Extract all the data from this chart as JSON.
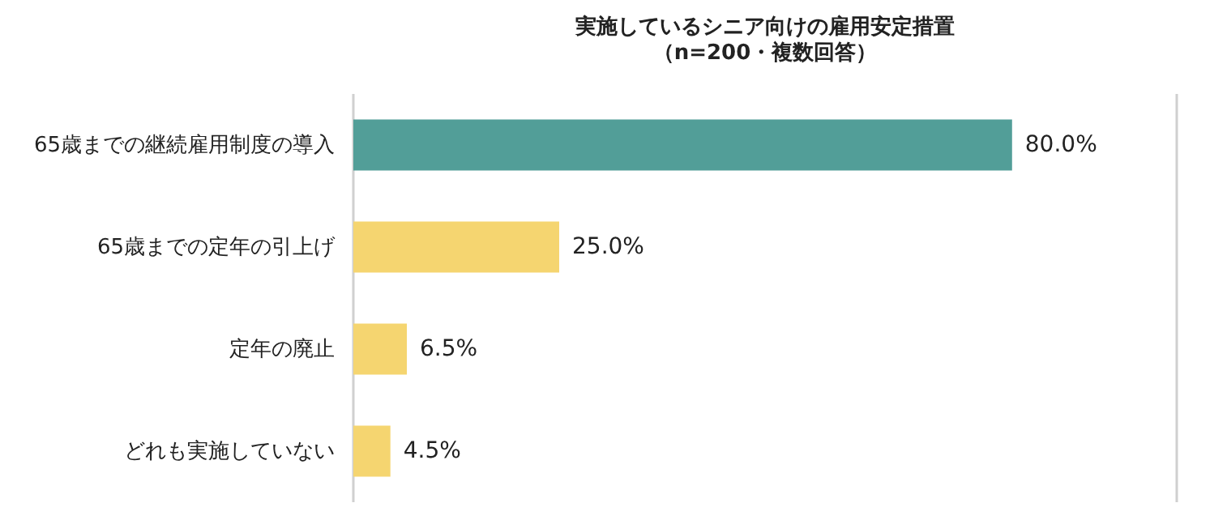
{
  "chart_data": {
    "type": "bar",
    "orientation": "horizontal",
    "title": "実施しているシニア向けの雇用安定措置",
    "subtitle": "（n=200・複数回答）",
    "categories": [
      "65歳までの継続雇用制度の導入",
      "65歳までの定年の引上げ",
      "定年の廃止",
      "どれも実施していない"
    ],
    "values": [
      80.0,
      25.0,
      6.5,
      4.5
    ],
    "colors": [
      "#529e98",
      "#f5d570",
      "#f5d570",
      "#f5d570"
    ],
    "value_labels": [
      "80.0%",
      "25.0%",
      "6.5%",
      "4.5%"
    ],
    "xlim": [
      0,
      100
    ],
    "ref_lines": [
      {
        "axis": "x",
        "value": 0,
        "color": "#d0d0d0"
      },
      {
        "axis": "x",
        "value": 100,
        "color": "#d0d0d0"
      }
    ],
    "tick_labels": "y"
  }
}
